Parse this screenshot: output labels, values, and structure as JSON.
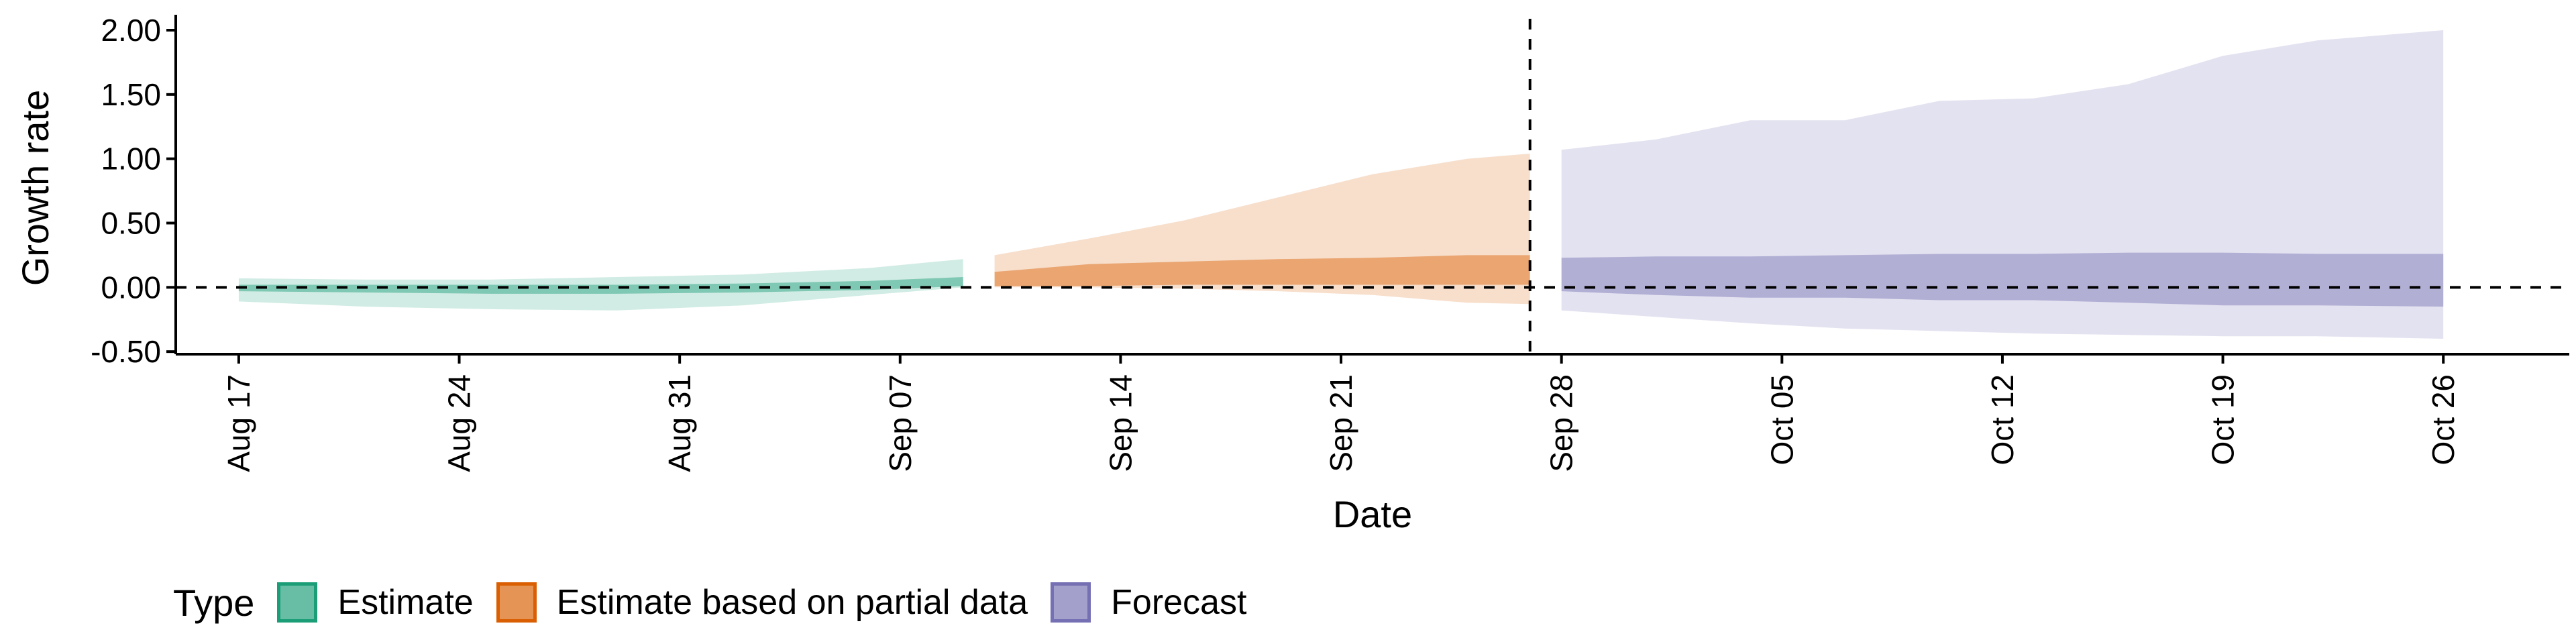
{
  "chart_data": {
    "type": "area",
    "xlabel": "Date",
    "ylabel": "Growth rate",
    "x_tick_labels": [
      "Aug 17",
      "Aug 24",
      "Aug 31",
      "Sep 07",
      "Sep 14",
      "Sep 21",
      "Sep 28",
      "Oct 05",
      "Oct 12",
      "Oct 19",
      "Oct 26"
    ],
    "y_tick_labels": [
      "-0.50",
      "0.00",
      "0.50",
      "1.00",
      "1.50",
      "2.00"
    ],
    "y_ticks": [
      -0.5,
      0,
      0.5,
      1.0,
      1.5,
      2.0
    ],
    "xlim": [
      "2020-08-15",
      "2020-10-30"
    ],
    "ylim": [
      -0.52,
      2.12
    ],
    "reference_lines": [
      {
        "orientation": "horizontal",
        "y": 0,
        "style": "dashed"
      },
      {
        "orientation": "vertical",
        "x": "2020-09-27",
        "style": "dashed"
      }
    ],
    "legend": {
      "title": "Type",
      "position": "bottom-left",
      "entries": [
        "Estimate",
        "Estimate based on partial data",
        "Forecast"
      ]
    },
    "colors": {
      "Estimate": "#1b9e77",
      "Estimate based on partial data": "#d95f02",
      "Forecast": "#7570b3"
    },
    "series": [
      {
        "name": "Estimate",
        "x": [
          "2020-08-17",
          "2020-08-21",
          "2020-08-25",
          "2020-08-29",
          "2020-09-02",
          "2020-09-06",
          "2020-09-09"
        ],
        "outer_upper": [
          0.07,
          0.06,
          0.06,
          0.08,
          0.1,
          0.15,
          0.22
        ],
        "outer_lower": [
          -0.11,
          -0.15,
          -0.17,
          -0.18,
          -0.14,
          -0.06,
          0.0
        ],
        "inner_upper": [
          0.02,
          0.02,
          0.02,
          0.02,
          0.03,
          0.05,
          0.08
        ],
        "inner_lower": [
          -0.03,
          -0.04,
          -0.05,
          -0.05,
          -0.04,
          -0.02,
          0.01
        ]
      },
      {
        "name": "Estimate based on partial data",
        "x": [
          "2020-09-10",
          "2020-09-13",
          "2020-09-16",
          "2020-09-19",
          "2020-09-22",
          "2020-09-25",
          "2020-09-27"
        ],
        "outer_upper": [
          0.25,
          0.38,
          0.52,
          0.7,
          0.88,
          1.0,
          1.04
        ],
        "outer_lower": [
          0.0,
          0.0,
          -0.01,
          -0.03,
          -0.06,
          -0.12,
          -0.13
        ],
        "inner_upper": [
          0.12,
          0.18,
          0.2,
          0.22,
          0.23,
          0.25,
          0.25
        ],
        "inner_lower": [
          0.01,
          0.01,
          0.02,
          0.02,
          0.02,
          0.02,
          0.02
        ]
      },
      {
        "name": "Forecast",
        "x": [
          "2020-09-28",
          "2020-10-01",
          "2020-10-04",
          "2020-10-07",
          "2020-10-10",
          "2020-10-13",
          "2020-10-16",
          "2020-10-19",
          "2020-10-22",
          "2020-10-26"
        ],
        "outer_upper": [
          1.07,
          1.15,
          1.3,
          1.3,
          1.45,
          1.47,
          1.58,
          1.8,
          1.92,
          2.0
        ],
        "outer_lower": [
          -0.18,
          -0.23,
          -0.28,
          -0.32,
          -0.34,
          -0.36,
          -0.37,
          -0.38,
          -0.38,
          -0.4
        ],
        "inner_upper": [
          0.23,
          0.24,
          0.24,
          0.25,
          0.26,
          0.26,
          0.27,
          0.27,
          0.26,
          0.26
        ],
        "inner_lower": [
          -0.03,
          -0.06,
          -0.08,
          -0.08,
          -0.1,
          -0.1,
          -0.12,
          -0.14,
          -0.14,
          -0.15
        ]
      }
    ]
  }
}
